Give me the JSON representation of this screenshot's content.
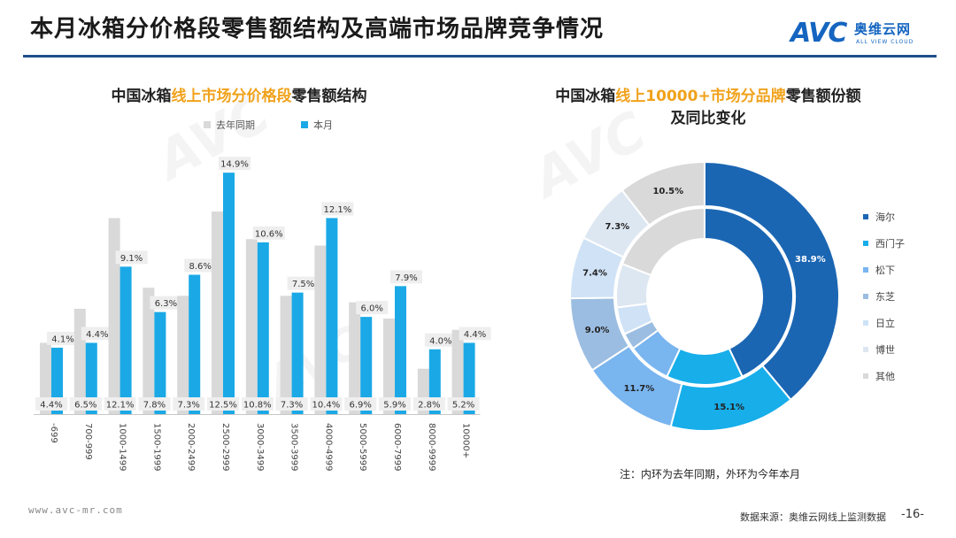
{
  "page_title": "本月冰箱分价格段零售额结构及高端市场品牌竞争情况",
  "logo": {
    "mark": "AVC",
    "cn": "奥维云网",
    "en": "ALL VIEW CLOUD"
  },
  "watermark": {
    "text": "AVC",
    "sub": "ALL VIEW CLOUD"
  },
  "colors": {
    "last_year": "#d9d9d9",
    "this_month": "#1aa9e6",
    "highlight": "#f0a21c",
    "rule": "#1f4e8c"
  },
  "left_chart": {
    "title_pre": "中国冰箱",
    "title_hl": "线上市场分价格段",
    "title_post": "零售额结构",
    "legend_last_year": "去年同期",
    "legend_this_month": "本月"
  },
  "right_chart": {
    "title_pre": "中国冰箱",
    "title_hl": "线上10000+市场分品牌",
    "title_post": "零售额份额",
    "title_line2": "及同比变化"
  },
  "chart_data": [
    {
      "type": "bar",
      "title": "中国冰箱线上市场分价格段零售额结构",
      "categories": [
        "-699",
        "700-999",
        "1000-1499",
        "1500-1999",
        "2000-2499",
        "2500-2999",
        "3000-3499",
        "3500-3999",
        "4000-4999",
        "5000-5999",
        "6000-7999",
        "8000-9999",
        "10000+"
      ],
      "series": [
        {
          "name": "去年同期",
          "values": [
            4.4,
            6.5,
            12.1,
            7.8,
            7.3,
            12.5,
            10.8,
            7.3,
            10.4,
            6.9,
            5.9,
            2.8,
            5.2
          ],
          "labels": [
            "4.4%",
            "6.5%",
            "12.1%",
            "7.8%",
            "7.3%",
            "12.5%",
            "10.8%",
            "7.3%",
            "10.4%",
            "6.9%",
            "5.9%",
            "2.8%",
            "5.2%"
          ]
        },
        {
          "name": "本月",
          "values": [
            4.1,
            4.4,
            9.1,
            6.3,
            8.6,
            14.9,
            10.6,
            7.5,
            12.1,
            6.0,
            7.9,
            4.0,
            4.4
          ],
          "labels": [
            "4.1%",
            "4.4%",
            "9.1%",
            "6.3%",
            "8.6%",
            "14.9%",
            "10.6%",
            "7.5%",
            "12.1%",
            "6.0%",
            "7.9%",
            "4.0%",
            "4.4%"
          ]
        }
      ],
      "ylim": [
        0,
        16
      ],
      "unit": "%"
    },
    {
      "type": "pie",
      "title": "中国冰箱线上10000+市场分品牌零售额份额及同比变化",
      "categories": [
        "海尔",
        "西门子",
        "松下",
        "东芝",
        "日立",
        "博世",
        "其他"
      ],
      "outer_values": [
        38.9,
        15.1,
        11.7,
        9.0,
        7.4,
        7.3,
        10.5
      ],
      "outer_labels": [
        "38.9%",
        "15.1%",
        "11.7%",
        "9.0%",
        "7.4%",
        "7.3%",
        "10.5%"
      ],
      "inner_values": [
        43.0,
        14.0,
        8.0,
        3.0,
        5.0,
        8.0,
        19.0
      ],
      "colors": [
        "#1b66b3",
        "#17aeea",
        "#79b5ef",
        "#9bbde1",
        "#cfe2f6",
        "#dde7f2",
        "#d9d9d9"
      ],
      "label_colors": [
        "#ffffff",
        "#222222",
        "#222222",
        "#222222",
        "#222222",
        "#222222",
        "#222222"
      ]
    }
  ],
  "footer": {
    "note": "注：内环为去年同期，外环为今年本月",
    "website": "www.avc-mr.com",
    "source": "数据来源：奥维云网线上监测数据",
    "page_number": "-16-"
  }
}
